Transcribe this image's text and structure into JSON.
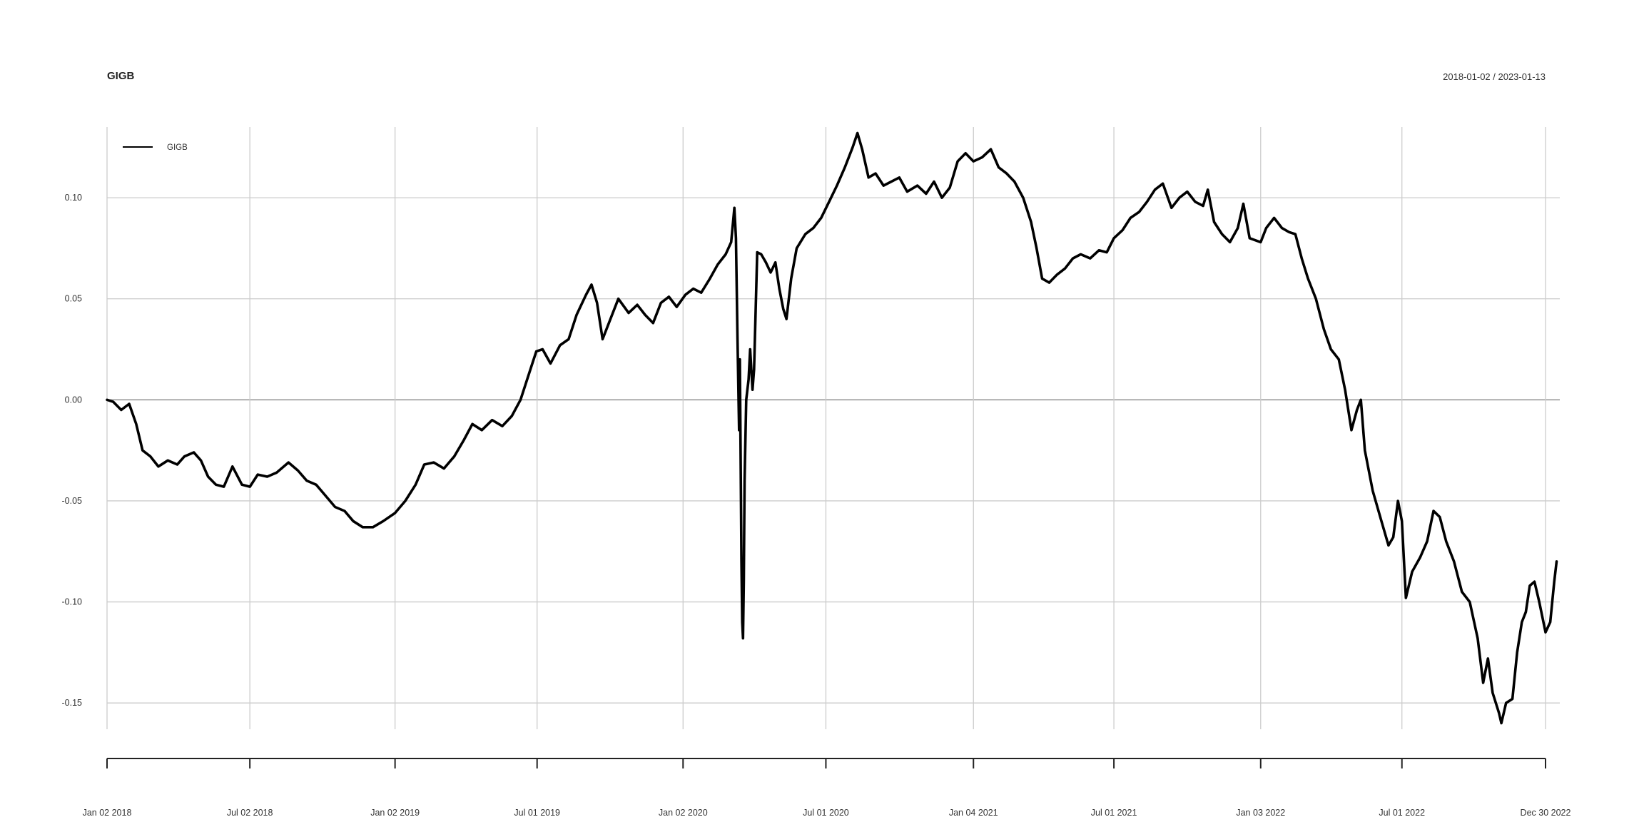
{
  "chart_data": {
    "type": "line",
    "title": "GIGB",
    "date_range": "2018-01-02 / 2023-01-13",
    "xlabel": "",
    "ylabel": "",
    "grid": true,
    "legend_position": "top-left",
    "ylim": [
      -0.163,
      0.135
    ],
    "xlim": [
      "2018-01-02",
      "2023-01-13"
    ],
    "x_tick_labels": [
      {
        "date": "2018-01-02",
        "label": "Jan 02 2018"
      },
      {
        "date": "2018-07-02",
        "label": "Jul 02 2018"
      },
      {
        "date": "2019-01-02",
        "label": "Jan 02 2019"
      },
      {
        "date": "2019-07-01",
        "label": "Jul 01 2019"
      },
      {
        "date": "2020-01-02",
        "label": "Jan 02 2020"
      },
      {
        "date": "2020-07-01",
        "label": "Jul 01 2020"
      },
      {
        "date": "2021-01-04",
        "label": "Jan 04 2021"
      },
      {
        "date": "2021-07-01",
        "label": "Jul 01 2021"
      },
      {
        "date": "2022-01-03",
        "label": "Jan 03 2022"
      },
      {
        "date": "2022-07-01",
        "label": "Jul 01 2022"
      },
      {
        "date": "2022-12-30",
        "label": "Dec 30 2022"
      }
    ],
    "y_ticks": [
      {
        "value": 0.1,
        "label": "0.10"
      },
      {
        "value": 0.05,
        "label": "0.05"
      },
      {
        "value": 0.0,
        "label": "0.00"
      },
      {
        "value": -0.05,
        "label": "-0.05"
      },
      {
        "value": -0.1,
        "label": "-0.10"
      },
      {
        "value": -0.15,
        "label": "-0.15"
      }
    ],
    "series": [
      {
        "name": "GIGB",
        "color": "#000000",
        "points": [
          [
            "2018-01-02",
            0.0
          ],
          [
            "2018-01-10",
            -0.001
          ],
          [
            "2018-01-20",
            -0.005
          ],
          [
            "2018-01-30",
            -0.002
          ],
          [
            "2018-02-08",
            -0.012
          ],
          [
            "2018-02-16",
            -0.025
          ],
          [
            "2018-02-26",
            -0.028
          ],
          [
            "2018-03-08",
            -0.033
          ],
          [
            "2018-03-20",
            -0.03
          ],
          [
            "2018-04-01",
            -0.032
          ],
          [
            "2018-04-10",
            -0.028
          ],
          [
            "2018-04-22",
            -0.026
          ],
          [
            "2018-05-01",
            -0.03
          ],
          [
            "2018-05-10",
            -0.038
          ],
          [
            "2018-05-20",
            -0.042
          ],
          [
            "2018-05-30",
            -0.043
          ],
          [
            "2018-06-10",
            -0.033
          ],
          [
            "2018-06-22",
            -0.042
          ],
          [
            "2018-07-02",
            -0.043
          ],
          [
            "2018-07-12",
            -0.037
          ],
          [
            "2018-07-24",
            -0.038
          ],
          [
            "2018-08-05",
            -0.036
          ],
          [
            "2018-08-20",
            -0.031
          ],
          [
            "2018-09-01",
            -0.035
          ],
          [
            "2018-09-12",
            -0.04
          ],
          [
            "2018-09-24",
            -0.042
          ],
          [
            "2018-10-05",
            -0.047
          ],
          [
            "2018-10-18",
            -0.053
          ],
          [
            "2018-10-30",
            -0.055
          ],
          [
            "2018-11-10",
            -0.06
          ],
          [
            "2018-11-22",
            -0.063
          ],
          [
            "2018-12-05",
            -0.063
          ],
          [
            "2018-12-18",
            -0.06
          ],
          [
            "2019-01-02",
            -0.056
          ],
          [
            "2019-01-15",
            -0.05
          ],
          [
            "2019-01-28",
            -0.042
          ],
          [
            "2019-02-08",
            -0.032
          ],
          [
            "2019-02-20",
            -0.031
          ],
          [
            "2019-03-05",
            -0.034
          ],
          [
            "2019-03-18",
            -0.028
          ],
          [
            "2019-03-30",
            -0.02
          ],
          [
            "2019-04-10",
            -0.012
          ],
          [
            "2019-04-22",
            -0.015
          ],
          [
            "2019-05-05",
            -0.01
          ],
          [
            "2019-05-18",
            -0.013
          ],
          [
            "2019-05-30",
            -0.008
          ],
          [
            "2019-06-10",
            0.0
          ],
          [
            "2019-06-20",
            0.012
          ],
          [
            "2019-06-30",
            0.024
          ],
          [
            "2019-07-08",
            0.025
          ],
          [
            "2019-07-18",
            0.018
          ],
          [
            "2019-07-30",
            0.027
          ],
          [
            "2019-08-10",
            0.03
          ],
          [
            "2019-08-20",
            0.042
          ],
          [
            "2019-09-01",
            0.052
          ],
          [
            "2019-09-08",
            0.057
          ],
          [
            "2019-09-15",
            0.048
          ],
          [
            "2019-09-22",
            0.03
          ],
          [
            "2019-10-02",
            0.04
          ],
          [
            "2019-10-12",
            0.05
          ],
          [
            "2019-10-25",
            0.043
          ],
          [
            "2019-11-05",
            0.047
          ],
          [
            "2019-11-15",
            0.042
          ],
          [
            "2019-11-25",
            0.038
          ],
          [
            "2019-12-05",
            0.048
          ],
          [
            "2019-12-15",
            0.051
          ],
          [
            "2019-12-25",
            0.046
          ],
          [
            "2020-01-05",
            0.052
          ],
          [
            "2020-01-15",
            0.055
          ],
          [
            "2020-01-25",
            0.053
          ],
          [
            "2020-02-05",
            0.06
          ],
          [
            "2020-02-15",
            0.067
          ],
          [
            "2020-02-25",
            0.072
          ],
          [
            "2020-03-03",
            0.078
          ],
          [
            "2020-03-07",
            0.095
          ],
          [
            "2020-03-09",
            0.08
          ],
          [
            "2020-03-11",
            0.03
          ],
          [
            "2020-03-13",
            -0.015
          ],
          [
            "2020-03-14",
            0.02
          ],
          [
            "2020-03-16",
            -0.08
          ],
          [
            "2020-03-17",
            -0.11
          ],
          [
            "2020-03-18",
            -0.118
          ],
          [
            "2020-03-19",
            -0.09
          ],
          [
            "2020-03-20",
            -0.04
          ],
          [
            "2020-03-22",
            0.0
          ],
          [
            "2020-03-25",
            0.01
          ],
          [
            "2020-03-27",
            0.025
          ],
          [
            "2020-03-30",
            0.005
          ],
          [
            "2020-04-01",
            0.015
          ],
          [
            "2020-04-05",
            0.073
          ],
          [
            "2020-04-10",
            0.072
          ],
          [
            "2020-04-16",
            0.068
          ],
          [
            "2020-04-22",
            0.063
          ],
          [
            "2020-04-28",
            0.068
          ],
          [
            "2020-05-03",
            0.055
          ],
          [
            "2020-05-08",
            0.045
          ],
          [
            "2020-05-12",
            0.04
          ],
          [
            "2020-05-18",
            0.06
          ],
          [
            "2020-05-25",
            0.075
          ],
          [
            "2020-06-05",
            0.082
          ],
          [
            "2020-06-15",
            0.085
          ],
          [
            "2020-06-25",
            0.09
          ],
          [
            "2020-07-05",
            0.098
          ],
          [
            "2020-07-15",
            0.106
          ],
          [
            "2020-07-25",
            0.115
          ],
          [
            "2020-08-04",
            0.125
          ],
          [
            "2020-08-10",
            0.132
          ],
          [
            "2020-08-16",
            0.124
          ],
          [
            "2020-08-24",
            0.11
          ],
          [
            "2020-09-02",
            0.112
          ],
          [
            "2020-09-12",
            0.106
          ],
          [
            "2020-09-22",
            0.108
          ],
          [
            "2020-10-02",
            0.11
          ],
          [
            "2020-10-12",
            0.103
          ],
          [
            "2020-10-25",
            0.106
          ],
          [
            "2020-11-05",
            0.102
          ],
          [
            "2020-11-15",
            0.108
          ],
          [
            "2020-11-25",
            0.1
          ],
          [
            "2020-12-05",
            0.105
          ],
          [
            "2020-12-15",
            0.118
          ],
          [
            "2020-12-25",
            0.122
          ],
          [
            "2021-01-04",
            0.118
          ],
          [
            "2021-01-15",
            0.12
          ],
          [
            "2021-01-26",
            0.124
          ],
          [
            "2021-02-05",
            0.115
          ],
          [
            "2021-02-15",
            0.112
          ],
          [
            "2021-02-25",
            0.108
          ],
          [
            "2021-03-08",
            0.1
          ],
          [
            "2021-03-18",
            0.088
          ],
          [
            "2021-03-25",
            0.075
          ],
          [
            "2021-04-01",
            0.06
          ],
          [
            "2021-04-10",
            0.058
          ],
          [
            "2021-04-20",
            0.062
          ],
          [
            "2021-04-30",
            0.065
          ],
          [
            "2021-05-10",
            0.07
          ],
          [
            "2021-05-20",
            0.072
          ],
          [
            "2021-06-01",
            0.07
          ],
          [
            "2021-06-12",
            0.074
          ],
          [
            "2021-06-22",
            0.073
          ],
          [
            "2021-07-01",
            0.08
          ],
          [
            "2021-07-12",
            0.084
          ],
          [
            "2021-07-22",
            0.09
          ],
          [
            "2021-08-02",
            0.093
          ],
          [
            "2021-08-12",
            0.098
          ],
          [
            "2021-08-22",
            0.104
          ],
          [
            "2021-09-01",
            0.107
          ],
          [
            "2021-09-12",
            0.095
          ],
          [
            "2021-09-22",
            0.1
          ],
          [
            "2021-10-02",
            0.103
          ],
          [
            "2021-10-12",
            0.098
          ],
          [
            "2021-10-22",
            0.096
          ],
          [
            "2021-10-28",
            0.104
          ],
          [
            "2021-11-05",
            0.088
          ],
          [
            "2021-11-15",
            0.082
          ],
          [
            "2021-11-25",
            0.078
          ],
          [
            "2021-12-05",
            0.085
          ],
          [
            "2021-12-12",
            0.097
          ],
          [
            "2021-12-20",
            0.08
          ],
          [
            "2022-01-03",
            0.078
          ],
          [
            "2022-01-10",
            0.085
          ],
          [
            "2022-01-20",
            0.09
          ],
          [
            "2022-01-30",
            0.085
          ],
          [
            "2022-02-08",
            0.083
          ],
          [
            "2022-02-16",
            0.082
          ],
          [
            "2022-02-24",
            0.07
          ],
          [
            "2022-03-04",
            0.06
          ],
          [
            "2022-03-14",
            0.05
          ],
          [
            "2022-03-24",
            0.035
          ],
          [
            "2022-04-02",
            0.025
          ],
          [
            "2022-04-12",
            0.02
          ],
          [
            "2022-04-20",
            0.005
          ],
          [
            "2022-04-28",
            -0.015
          ],
          [
            "2022-05-05",
            -0.005
          ],
          [
            "2022-05-10",
            0.0
          ],
          [
            "2022-05-15",
            -0.025
          ],
          [
            "2022-05-25",
            -0.045
          ],
          [
            "2022-06-05",
            -0.06
          ],
          [
            "2022-06-14",
            -0.072
          ],
          [
            "2022-06-20",
            -0.068
          ],
          [
            "2022-06-26",
            -0.05
          ],
          [
            "2022-07-01",
            -0.06
          ],
          [
            "2022-07-06",
            -0.098
          ],
          [
            "2022-07-14",
            -0.085
          ],
          [
            "2022-07-24",
            -0.078
          ],
          [
            "2022-08-02",
            -0.07
          ],
          [
            "2022-08-10",
            -0.055
          ],
          [
            "2022-08-18",
            -0.058
          ],
          [
            "2022-08-26",
            -0.07
          ],
          [
            "2022-09-05",
            -0.08
          ],
          [
            "2022-09-15",
            -0.095
          ],
          [
            "2022-09-25",
            -0.1
          ],
          [
            "2022-10-05",
            -0.118
          ],
          [
            "2022-10-12",
            -0.14
          ],
          [
            "2022-10-18",
            -0.128
          ],
          [
            "2022-10-24",
            -0.145
          ],
          [
            "2022-11-01",
            -0.155
          ],
          [
            "2022-11-04",
            -0.16
          ],
          [
            "2022-11-10",
            -0.15
          ],
          [
            "2022-11-18",
            -0.148
          ],
          [
            "2022-11-24",
            -0.125
          ],
          [
            "2022-11-30",
            -0.11
          ],
          [
            "2022-12-05",
            -0.105
          ],
          [
            "2022-12-10",
            -0.092
          ],
          [
            "2022-12-16",
            -0.09
          ],
          [
            "2022-12-22",
            -0.1
          ],
          [
            "2022-12-30",
            -0.115
          ],
          [
            "2023-01-05",
            -0.11
          ],
          [
            "2023-01-10",
            -0.09
          ],
          [
            "2023-01-13",
            -0.08
          ]
        ]
      }
    ]
  }
}
